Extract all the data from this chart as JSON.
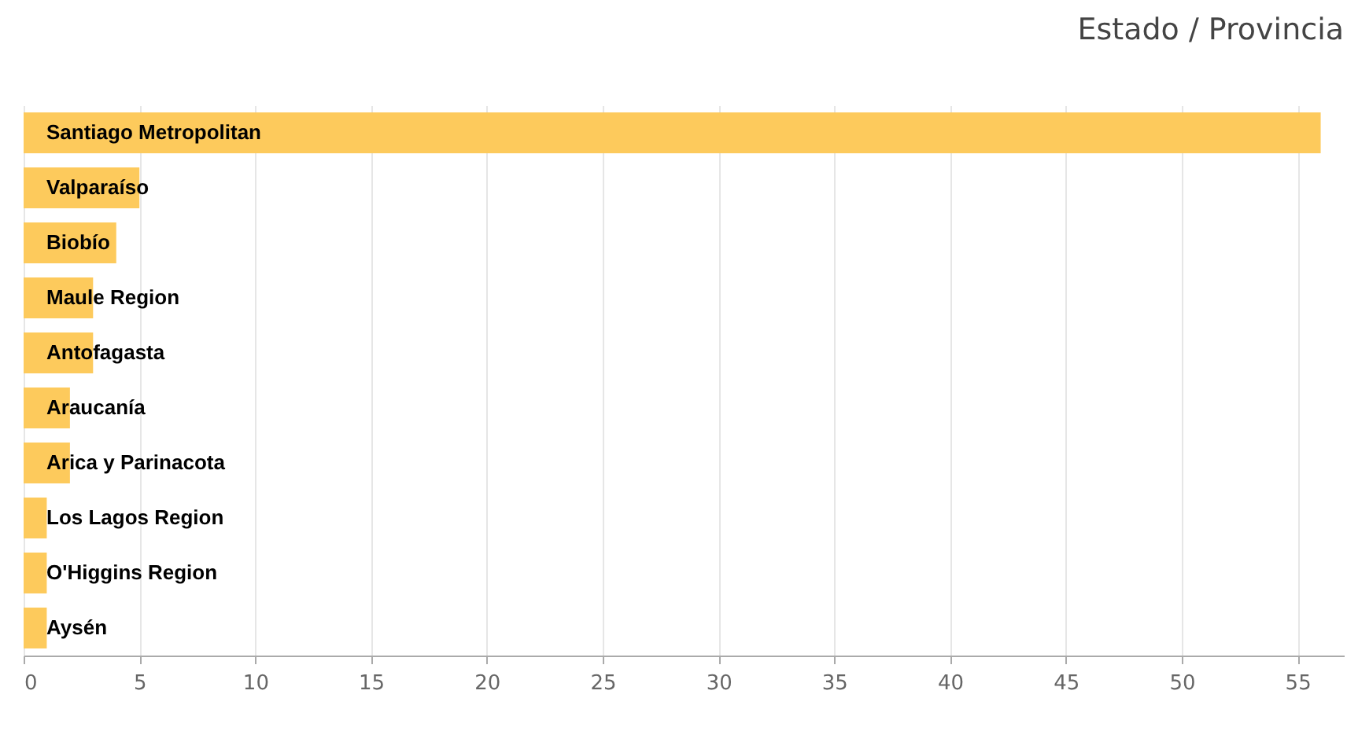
{
  "chart_data": {
    "type": "bar",
    "orientation": "horizontal",
    "title": "Estado / Provincia",
    "categories": [
      "Santiago Metropolitan",
      "Valparaíso",
      "Biobío",
      "Maule Region",
      "Antofagasta",
      "Araucanía",
      "Arica y Parinacota",
      "Los Lagos Region",
      "O'Higgins Region",
      "Aysén"
    ],
    "values": [
      56,
      5,
      4,
      3,
      3,
      2,
      2,
      1,
      1,
      1
    ],
    "color": "#fdca5c",
    "xlim": [
      0,
      57
    ],
    "xticks": [
      0,
      5,
      10,
      15,
      20,
      25,
      30,
      35,
      40,
      45,
      50,
      55
    ],
    "grid": "x"
  }
}
